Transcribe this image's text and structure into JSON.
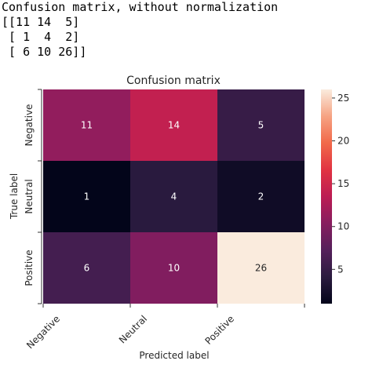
{
  "console": {
    "lines": [
      "Confusion matrix, without normalization",
      "[[11 14  5]",
      " [ 1  4  2]",
      " [ 6 10 26]]"
    ]
  },
  "chart_data": {
    "type": "heatmap",
    "title": "Confusion matrix",
    "xlabel": "Predicted label",
    "ylabel": "True label",
    "x_categories": [
      "Negative",
      "Neutral",
      "Positive"
    ],
    "y_categories": [
      "Negative",
      "Neutral",
      "Positive"
    ],
    "values": [
      [
        11,
        14,
        5
      ],
      [
        1,
        4,
        2
      ],
      [
        6,
        10,
        26
      ]
    ],
    "colorbar": {
      "min": 1,
      "max": 26,
      "ticks": [
        5,
        10,
        15,
        20,
        25
      ],
      "colormap": "rocket"
    },
    "annotations": true,
    "grid": false
  }
}
